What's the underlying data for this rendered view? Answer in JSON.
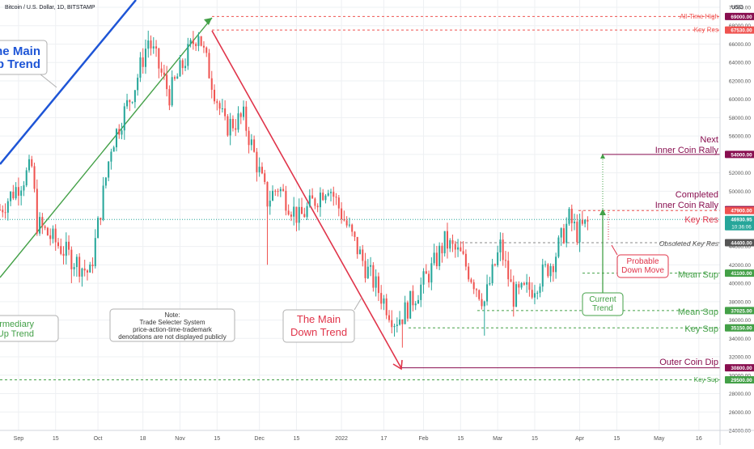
{
  "header": {
    "title": "Bitcoin / U.S. Dollar, 1D, BITSTAMP",
    "currency": "USD"
  },
  "colors": {
    "up": "#26a69a",
    "down": "#ef5350",
    "green": "#43a047",
    "red": "#e0344a",
    "maroon": "#880e4f",
    "blue": "#1e55d6",
    "grid": "#eef0f3",
    "dashed_gray": "#888888"
  },
  "chart_data": {
    "type": "candlestick",
    "ylim": [
      24000,
      70000
    ],
    "y_scale": "linear",
    "grid": true,
    "y_ticks": [
      24000,
      26000,
      28000,
      30000,
      32000,
      34000,
      36000,
      38000,
      40000,
      42000,
      44000,
      46000,
      48000,
      50000,
      52000,
      54000,
      56000,
      58000,
      60000,
      62000,
      64000,
      66000,
      68000,
      70000
    ],
    "y_tick_labels": [
      "24000.00",
      "26000.00",
      "28000.00",
      "30000.00",
      "32000.00",
      "34000.00",
      "36000.00",
      "38000.00",
      "40000.00",
      "42000.00",
      "44000.00",
      "46000.00",
      "48000.00",
      "50000.00",
      "52000.00",
      "54000.00",
      "56000.00",
      "58000.00",
      "60000.00",
      "62000.00",
      "64000.00",
      "66000.00",
      "68000.00",
      "70000.00"
    ],
    "x_start": "2021-08-25",
    "x_end": "2022-05-24",
    "x_ticks": [
      {
        "date": "2021-09-01",
        "label": "Sep"
      },
      {
        "date": "2021-09-15",
        "label": "15"
      },
      {
        "date": "2021-10-01",
        "label": "Oct"
      },
      {
        "date": "2021-10-18",
        "label": "18"
      },
      {
        "date": "2021-11-01",
        "label": "Nov"
      },
      {
        "date": "2021-11-15",
        "label": "15"
      },
      {
        "date": "2021-12-01",
        "label": "Dec"
      },
      {
        "date": "2021-12-15",
        "label": "15"
      },
      {
        "date": "2022-01-01",
        "label": "2022"
      },
      {
        "date": "2022-01-17",
        "label": "17"
      },
      {
        "date": "2022-02-01",
        "label": "Feb"
      },
      {
        "date": "2022-02-15",
        "label": "15"
      },
      {
        "date": "2022-03-01",
        "label": "Mar"
      },
      {
        "date": "2022-03-15",
        "label": "15"
      },
      {
        "date": "2022-04-01",
        "label": "Apr"
      },
      {
        "date": "2022-04-15",
        "label": "15"
      },
      {
        "date": "2022-05-01",
        "label": "May"
      },
      {
        "date": "2022-05-16",
        "label": "16"
      }
    ],
    "keypoints": [
      [
        "2021-08-25",
        48000
      ],
      [
        "2021-09-06",
        52600
      ],
      [
        "2021-09-08",
        46500
      ],
      [
        "2021-09-20",
        43000
      ],
      [
        "2021-09-28",
        41000
      ],
      [
        "2021-10-06",
        55000
      ],
      [
        "2021-10-15",
        61500
      ],
      [
        "2021-10-20",
        66500
      ],
      [
        "2021-10-28",
        60500
      ],
      [
        "2021-11-08",
        67500
      ],
      [
        "2021-11-10",
        65000
      ],
      [
        "2021-11-18",
        57000
      ],
      [
        "2021-11-25",
        58000
      ],
      [
        "2021-12-04",
        49000
      ],
      [
        "2021-12-08",
        50500
      ],
      [
        "2021-12-16",
        47000
      ],
      [
        "2021-12-27",
        50800
      ],
      [
        "2022-01-05",
        45000
      ],
      [
        "2022-01-10",
        41800
      ],
      [
        "2022-01-21",
        36000
      ],
      [
        "2022-01-24",
        36500
      ],
      [
        "2022-02-04",
        41500
      ],
      [
        "2022-02-09",
        44500
      ],
      [
        "2022-02-15",
        43000
      ],
      [
        "2022-02-24",
        38000
      ],
      [
        "2022-03-02",
        44000
      ],
      [
        "2022-03-07",
        38500
      ],
      [
        "2022-03-14",
        39500
      ],
      [
        "2022-03-22",
        42500
      ],
      [
        "2022-03-28",
        47000
      ],
      [
        "2022-03-31",
        45500
      ],
      [
        "2022-04-04",
        46500
      ]
    ],
    "lows": [
      [
        "2021-09-21",
        40000
      ],
      [
        "2021-12-04",
        42000
      ],
      [
        "2022-01-24",
        33000
      ],
      [
        "2022-02-24",
        34300
      ]
    ],
    "levels": [
      {
        "name": "all-time-high",
        "value": 69000,
        "text": "All-Time High",
        "price": "69000.00",
        "style": "dashed",
        "color": "#ef5350",
        "box": "#880e4f"
      },
      {
        "name": "key-res-top",
        "value": 67530,
        "text": "Key Res",
        "price": "67530.00",
        "style": "dashed",
        "color": "#ef5350",
        "box": "#ef5350"
      },
      {
        "name": "inner-coin-rally",
        "value": 54000,
        "price": "54000.00",
        "style": "solid",
        "color": "#880e4f",
        "box": "#880e4f"
      },
      {
        "name": "completed-rally",
        "value": 48000,
        "price": "48000.00",
        "style": "none",
        "color": "#880e4f",
        "box": "#880e4f"
      },
      {
        "name": "key-res",
        "value": 47900,
        "price": "47900.00",
        "style": "dashed",
        "color": "#ef5350",
        "box": "#ef5350"
      },
      {
        "name": "current-price",
        "value": 46930,
        "price": "46930.95",
        "countdown": "10:36:06",
        "style": "dotted",
        "color": "#26a69a",
        "box": "#26a69a"
      },
      {
        "name": "obsoleted-key-res",
        "value": 44400,
        "price": "44400.00",
        "style": "dashed",
        "color": "#888888",
        "box": "#555555"
      },
      {
        "name": "mean-sup-upper",
        "value": 41100,
        "price": "41100.00",
        "style": "dashed",
        "color": "#43a047",
        "box": "#43a047"
      },
      {
        "name": "mean-sup-lower",
        "value": 37025,
        "price": "37025.00",
        "style": "dashed",
        "color": "#43a047",
        "box": "#43a047"
      },
      {
        "name": "key-sup-upper",
        "value": 35150,
        "price": "35150.00",
        "style": "dashed",
        "color": "#43a047",
        "box": "#43a047"
      },
      {
        "name": "outer-coin-dip",
        "value": 30800,
        "price": "30800.00",
        "style": "solid",
        "color": "#880e4f",
        "box": "#880e4f"
      },
      {
        "name": "key-sup-lower",
        "value": 29500,
        "text": "Key Sup",
        "price": "29500.00",
        "style": "dashed",
        "color": "#43a047",
        "box": "#43a047"
      }
    ],
    "annotations": {
      "main_up_trend": "The Main\nUp Trend",
      "intermediary_up_trend": "Intermediary\nUp Trend",
      "main_down_trend": "The Main\nDown Trend",
      "note": "Note:\nTrade Selecter System\nprice-action-time-trademark\ndenotations are not displayed publicly",
      "next_rally": "Next\nInner Coin Rally",
      "completed_rally": "Completed\nInner Coin Rally",
      "key_res": "Key Res",
      "obsoleted": "Obsoleted Key Res",
      "probable": "Probable\nDown Move",
      "mean_sup_1": "Mean Sup",
      "current_trend": "Current\nTrend",
      "mean_sup_2": "Mean Sup",
      "key_sup": "Key Sup",
      "outer_coin_dip": "Outer Coin Dip"
    }
  }
}
